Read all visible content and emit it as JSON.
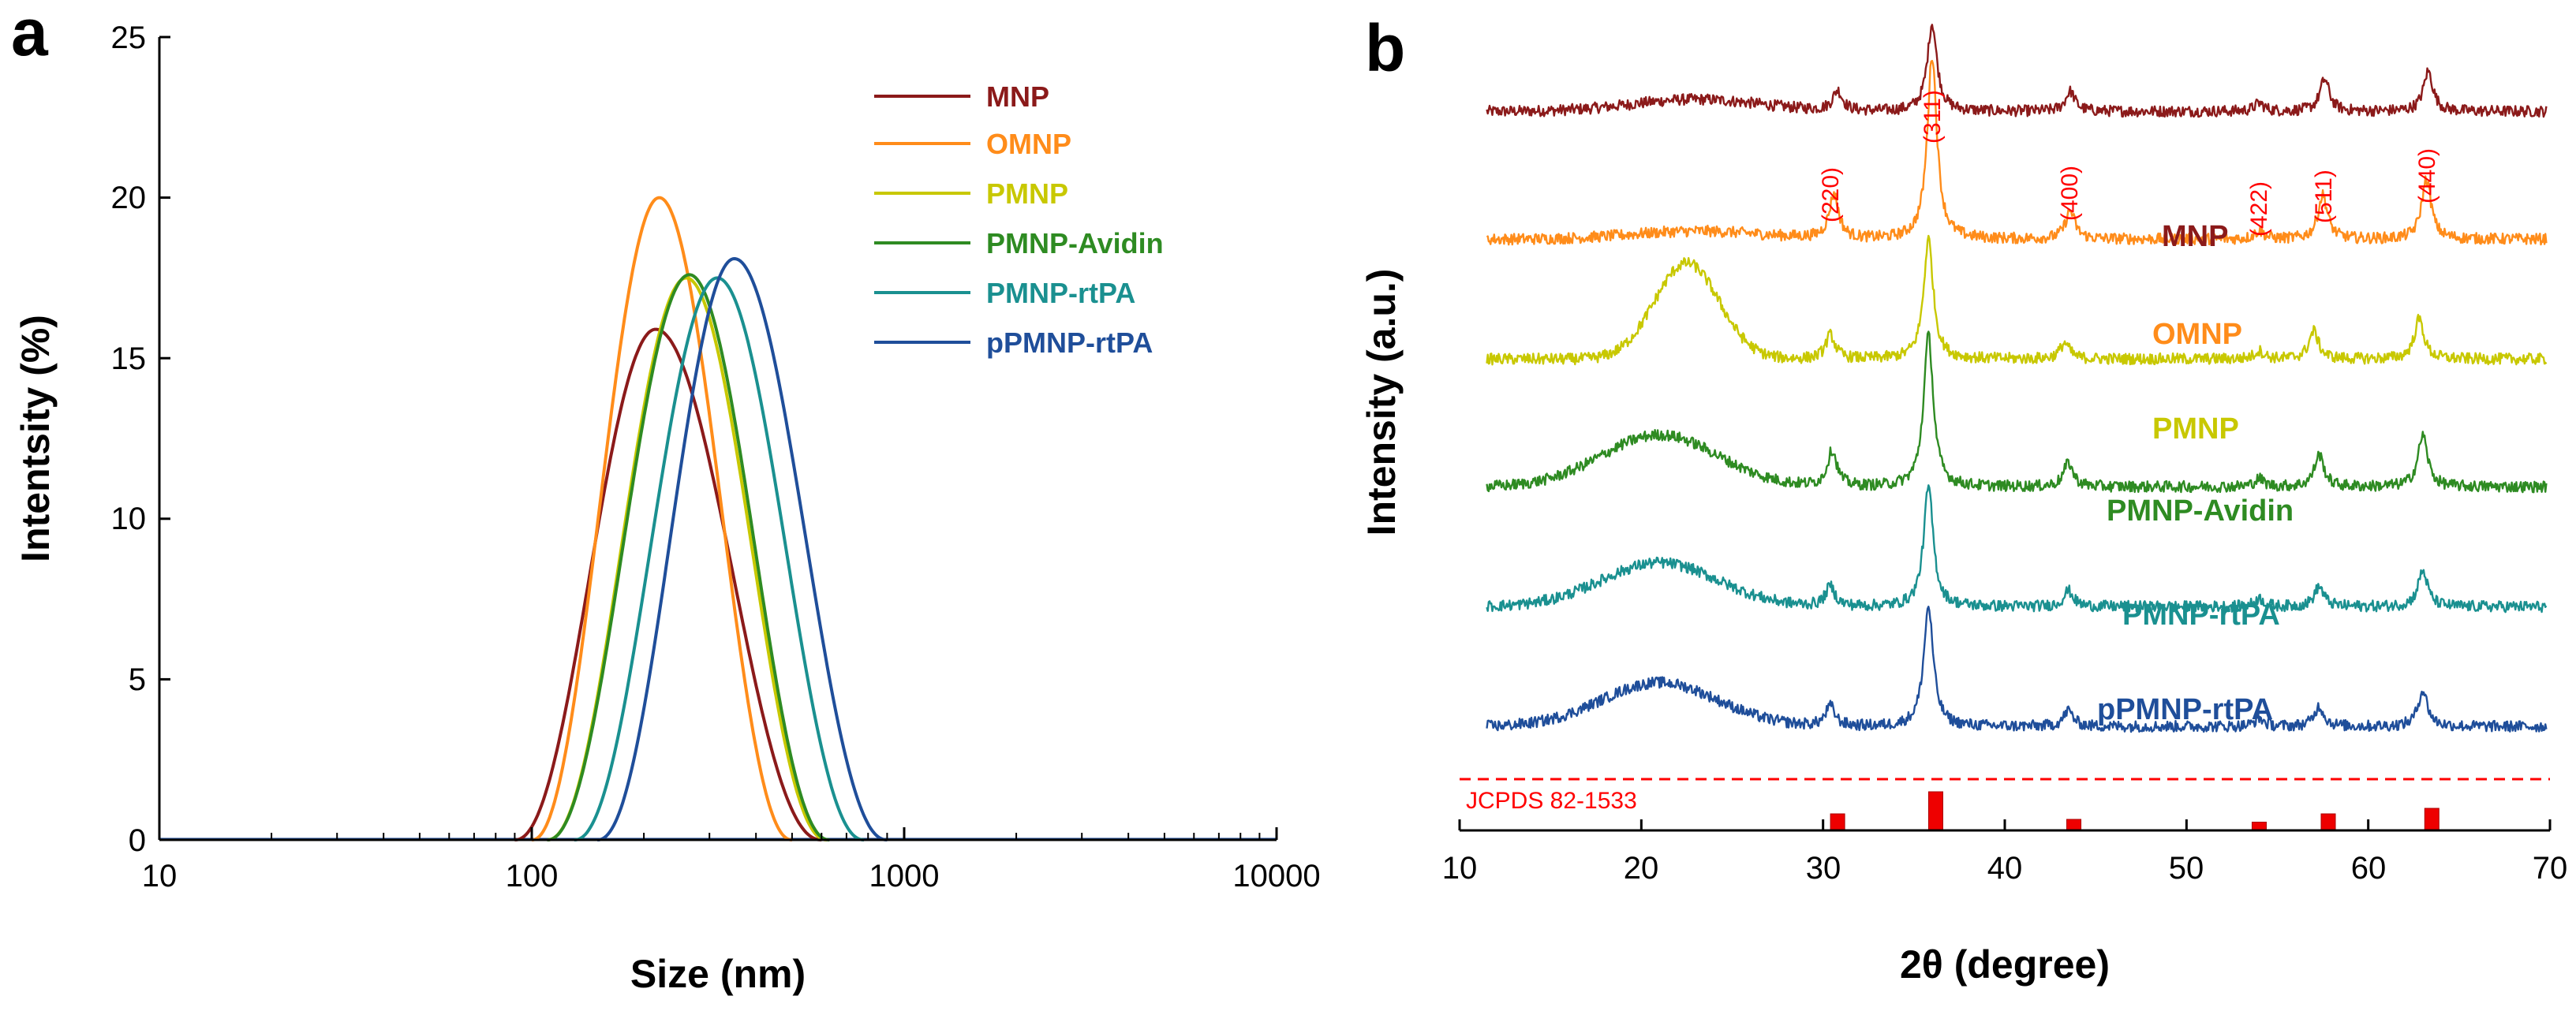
{
  "chart_data": [
    {
      "panel": "a",
      "type": "line",
      "xscale": "log",
      "xlabel": "Size (nm)",
      "ylabel": "Intentsity (%)",
      "xlim": [
        10,
        10000
      ],
      "ylim": [
        0,
        25
      ],
      "xticks": [
        "10",
        "100",
        "1000",
        "10000"
      ],
      "yticks": [
        "0",
        "5",
        "10",
        "15",
        "20",
        "25"
      ],
      "legend_position": "top-right",
      "series": [
        {
          "name": "MNP",
          "color": "#8b1a1a",
          "peak_x": 215,
          "peak_y": 15.9,
          "x_start": 90,
          "x_end": 600,
          "x": [
            90,
            215,
            600
          ],
          "y": [
            0,
            15.9,
            0
          ]
        },
        {
          "name": "OMNP",
          "color": "#ff8c1a",
          "peak_x": 220,
          "peak_y": 20.0,
          "x_start": 100,
          "x_end": 500,
          "x": [
            100,
            220,
            500
          ],
          "y": [
            0,
            20.0,
            0
          ]
        },
        {
          "name": "PMNP",
          "color": "#c8c800",
          "peak_x": 260,
          "peak_y": 17.5,
          "x_start": 110,
          "x_end": 620,
          "x": [
            110,
            260,
            620
          ],
          "y": [
            0,
            17.5,
            0
          ]
        },
        {
          "name": "PMNP-Avidin",
          "color": "#2e8b22",
          "peak_x": 265,
          "peak_y": 17.6,
          "x_start": 110,
          "x_end": 630,
          "x": [
            110,
            265,
            630
          ],
          "y": [
            0,
            17.6,
            0
          ]
        },
        {
          "name": "PMNP-rtPA",
          "color": "#1a9090",
          "peak_x": 315,
          "peak_y": 17.5,
          "x_start": 130,
          "x_end": 780,
          "x": [
            130,
            315,
            780
          ],
          "y": [
            0,
            17.5,
            0
          ]
        },
        {
          "name": "pPMNP-rtPA",
          "color": "#1f4e9a",
          "peak_x": 350,
          "peak_y": 18.1,
          "x_start": 150,
          "x_end": 900,
          "x": [
            150,
            350,
            900
          ],
          "y": [
            0,
            18.1,
            0
          ]
        }
      ]
    },
    {
      "panel": "b",
      "type": "line",
      "xlabel": "2θ (degree)",
      "ylabel": "Intensity (a.u.)",
      "xlim": [
        10,
        70
      ],
      "ylim": [
        0,
        100
      ],
      "xticks": [
        "10",
        "20",
        "30",
        "40",
        "50",
        "60",
        "70"
      ],
      "hkl_labels": [
        {
          "label": "(220)",
          "x": 30.5
        },
        {
          "label": "(311)",
          "x": 36.0
        },
        {
          "label": "(400)",
          "x": 43.5
        },
        {
          "label": "(422)",
          "x": 54.0
        },
        {
          "label": "(511)",
          "x": 57.5
        },
        {
          "label": "(440)",
          "x": 63.2
        }
      ],
      "reference": {
        "label": "JCPDS 82-1533",
        "bars": [
          {
            "x": 30.8,
            "intensity": 3
          },
          {
            "x": 36.2,
            "intensity": 7
          },
          {
            "x": 43.8,
            "intensity": 2
          },
          {
            "x": 54.0,
            "intensity": 1.5
          },
          {
            "x": 57.8,
            "intensity": 3
          },
          {
            "x": 63.5,
            "intensity": 4
          }
        ]
      },
      "series": [
        {
          "name": "MNP",
          "color": "#8b1a1a",
          "baseline": 90,
          "amorphous_hump": {
            "center": 23,
            "width": 5,
            "height": 1.5
          },
          "peaks": [
            {
              "x": 30.8,
              "h": 2.5
            },
            {
              "x": 36.0,
              "h": 11
            },
            {
              "x": 43.6,
              "h": 2.5
            },
            {
              "x": 54.0,
              "h": 1
            },
            {
              "x": 57.6,
              "h": 4
            },
            {
              "x": 63.3,
              "h": 5
            }
          ]
        },
        {
          "name": "OMNP",
          "color": "#ff8c1a",
          "baseline": 74,
          "amorphous_hump": {
            "center": 23,
            "width": 5,
            "height": 1
          },
          "peaks": [
            {
              "x": 30.6,
              "h": 5.5
            },
            {
              "x": 36.0,
              "h": 23
            },
            {
              "x": 43.6,
              "h": 3.5
            },
            {
              "x": 54.0,
              "h": 1
            },
            {
              "x": 57.5,
              "h": 5.5
            },
            {
              "x": 63.2,
              "h": 7.5
            }
          ]
        },
        {
          "name": "PMNP",
          "color": "#c8c800",
          "baseline": 59,
          "amorphous_hump": {
            "center": 22.5,
            "width": 2.5,
            "height": 12
          },
          "peaks": [
            {
              "x": 30.4,
              "h": 3
            },
            {
              "x": 35.8,
              "h": 15
            },
            {
              "x": 43.3,
              "h": 2
            },
            {
              "x": 54.0,
              "h": 1
            },
            {
              "x": 57.0,
              "h": 3.5
            },
            {
              "x": 62.8,
              "h": 5
            }
          ]
        },
        {
          "name": "PMNP-Avidin",
          "color": "#2e8b22",
          "baseline": 43,
          "amorphous_hump": {
            "center": 21,
            "width": 4.5,
            "height": 6.5
          },
          "peaks": [
            {
              "x": 30.5,
              "h": 4.5
            },
            {
              "x": 35.8,
              "h": 19
            },
            {
              "x": 43.5,
              "h": 3
            },
            {
              "x": 54.0,
              "h": 1
            },
            {
              "x": 57.3,
              "h": 4
            },
            {
              "x": 63.0,
              "h": 6.5
            }
          ]
        },
        {
          "name": "PMNP-rtPA",
          "color": "#1a9090",
          "baseline": 28,
          "amorphous_hump": {
            "center": 21,
            "width": 4.5,
            "height": 5.5
          },
          "peaks": [
            {
              "x": 30.4,
              "h": 2.5
            },
            {
              "x": 35.8,
              "h": 15
            },
            {
              "x": 43.5,
              "h": 2
            },
            {
              "x": 54.0,
              "h": 1
            },
            {
              "x": 57.3,
              "h": 2.5
            },
            {
              "x": 63.0,
              "h": 4.5
            }
          ]
        },
        {
          "name": "pPMNP-rtPA",
          "color": "#1f4e9a",
          "baseline": 13,
          "amorphous_hump": {
            "center": 21,
            "width": 4.5,
            "height": 5.5
          },
          "peaks": [
            {
              "x": 30.4,
              "h": 2.5
            },
            {
              "x": 35.8,
              "h": 15
            },
            {
              "x": 43.5,
              "h": 2
            },
            {
              "x": 54.0,
              "h": 1
            },
            {
              "x": 57.3,
              "h": 2.5
            },
            {
              "x": 63.0,
              "h": 4.5
            }
          ]
        }
      ]
    }
  ]
}
